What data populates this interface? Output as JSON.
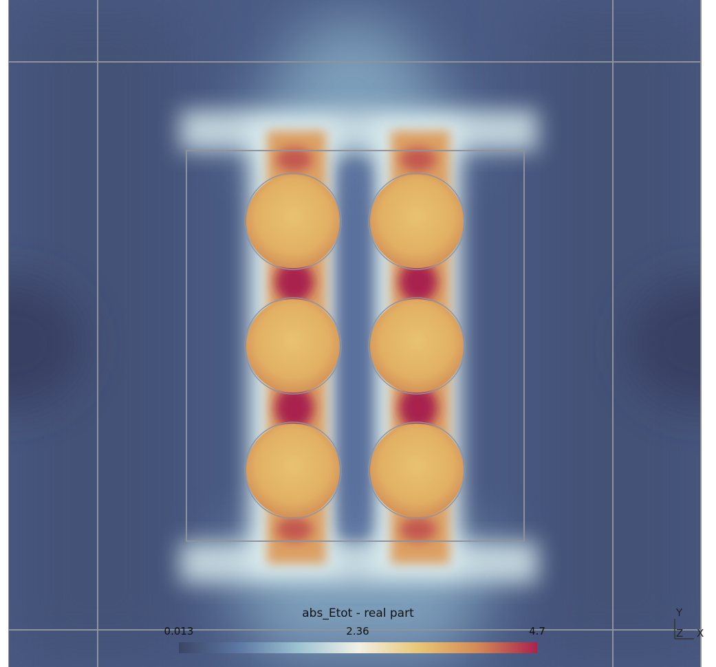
{
  "colorbar": {
    "title": "abs_Etot - real part",
    "min_label": "0.013",
    "mid_label": "2.36",
    "max_label": "4.7",
    "colors": [
      "#3b4566",
      "#5c77a3",
      "#9cc3d2",
      "#f2f0e6",
      "#e8c777",
      "#d48a57",
      "#a8234d"
    ]
  },
  "orientation_axes": {
    "y": "Y",
    "z": "Z",
    "x": "X"
  },
  "colors": {
    "background_field": "#4a5b84",
    "outline": "#8f949c",
    "hot": "#a8234d",
    "warm": "#e4b664",
    "glow": "#e9f1f1"
  }
}
